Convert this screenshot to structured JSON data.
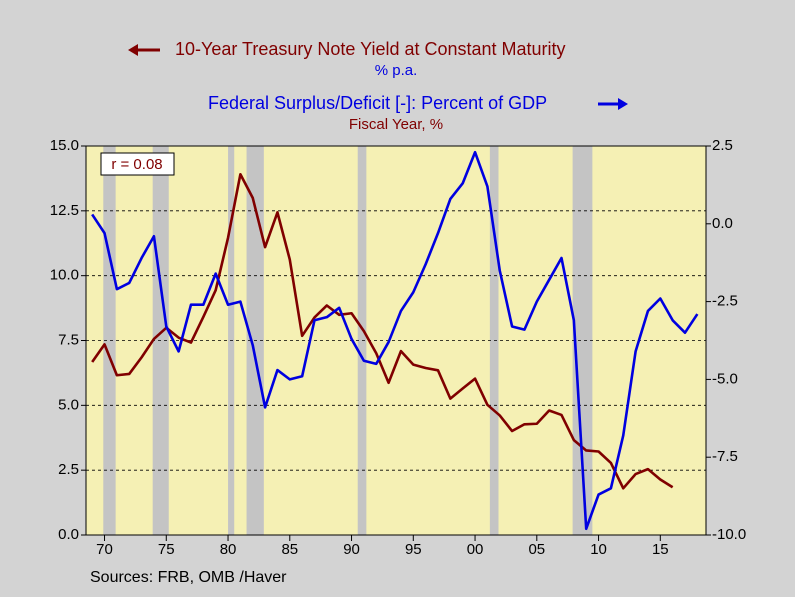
{
  "chart_data": {
    "type": "line",
    "title": "10-Year Treasury Note Yield at Constant Maturity",
    "subtitle": "% p.a.",
    "title2": "Federal Surplus/Deficit [-]: Percent of GDP",
    "subtitle2": "Fiscal Year, %",
    "annotation": "r = 0.08",
    "source": "Sources:  FRB, OMB /Haver",
    "xlim": [
      1968.5,
      2018.7
    ],
    "xticks": [
      {
        "value": 1970,
        "label": "70"
      },
      {
        "value": 1975,
        "label": "75"
      },
      {
        "value": 1980,
        "label": "80"
      },
      {
        "value": 1985,
        "label": "85"
      },
      {
        "value": 1990,
        "label": "90"
      },
      {
        "value": 1995,
        "label": "95"
      },
      {
        "value": 2000,
        "label": "00"
      },
      {
        "value": 2005,
        "label": "05"
      },
      {
        "value": 2010,
        "label": "10"
      },
      {
        "value": 2015,
        "label": "15"
      }
    ],
    "ylim": [
      0,
      15
    ],
    "yticks": [
      {
        "value": 0,
        "label": "0.0"
      },
      {
        "value": 2.5,
        "label": "2.5"
      },
      {
        "value": 5,
        "label": "5.0"
      },
      {
        "value": 7.5,
        "label": "7.5"
      },
      {
        "value": 10,
        "label": "10.0"
      },
      {
        "value": 12.5,
        "label": "12.5"
      },
      {
        "value": 15,
        "label": "15.0"
      }
    ],
    "y2lim": [
      -10,
      2.5
    ],
    "y2ticks": [
      {
        "value": -10,
        "label": "-10.0"
      },
      {
        "value": -7.5,
        "label": "-7.5"
      },
      {
        "value": -5,
        "label": "-5.0"
      },
      {
        "value": -2.5,
        "label": "-2.5"
      },
      {
        "value": 0,
        "label": "0.0"
      },
      2.5
    ],
    "grid": true,
    "recessions": [
      [
        1969.9,
        1970.9
      ],
      [
        1973.9,
        1975.2
      ],
      [
        1980.0,
        1980.5
      ],
      [
        1981.5,
        1982.9
      ],
      [
        1990.5,
        1991.2
      ],
      [
        2001.2,
        2001.9
      ],
      [
        2007.9,
        2009.5
      ]
    ],
    "series": [
      {
        "name": "10-Year Treasury Note Yield at Constant Maturity",
        "color": "#800000",
        "x": [
          1969,
          1970,
          1971,
          1972,
          1973,
          1974,
          1975,
          1976,
          1977,
          1978,
          1979,
          1980,
          1981,
          1982,
          1983,
          1984,
          1985,
          1986,
          1987,
          1988,
          1989,
          1990,
          1991,
          1992,
          1993,
          1994,
          1995,
          1996,
          1997,
          1998,
          1999,
          2000,
          2001,
          2002,
          2003,
          2004,
          2005,
          2006,
          2007,
          2008,
          2009,
          2010,
          2011,
          2012,
          2013,
          2014,
          2015,
          2016
        ],
        "values": [
          6.67,
          7.35,
          6.16,
          6.21,
          6.85,
          7.56,
          7.99,
          7.61,
          7.42,
          8.41,
          9.44,
          11.46,
          13.91,
          13.0,
          11.1,
          12.44,
          10.62,
          7.68,
          8.39,
          8.85,
          8.49,
          8.55,
          7.86,
          7.01,
          5.87,
          7.09,
          6.57,
          6.44,
          6.35,
          5.26,
          5.65,
          6.03,
          5.02,
          4.61,
          4.01,
          4.27,
          4.29,
          4.8,
          4.63,
          3.66,
          3.26,
          3.22,
          2.78,
          1.8,
          2.35,
          2.54,
          2.14,
          1.84
        ]
      },
      {
        "name": "Federal Surplus/Deficit [-]: Percent of GDP",
        "color": "#0000e0",
        "axis": "y2",
        "x": [
          1969,
          1970,
          1971,
          1972,
          1973,
          1974,
          1975,
          1976,
          1977,
          1978,
          1979,
          1980,
          1981,
          1982,
          1983,
          1984,
          1985,
          1986,
          1987,
          1988,
          1989,
          1990,
          1991,
          1992,
          1993,
          1994,
          1995,
          1996,
          1997,
          1998,
          1999,
          2000,
          2001,
          2002,
          2003,
          2004,
          2005,
          2006,
          2007,
          2008,
          2009,
          2010,
          2011,
          2012,
          2013,
          2014,
          2015,
          2016,
          2017,
          2018
        ],
        "values": [
          0.3,
          -0.3,
          -2.1,
          -1.9,
          -1.1,
          -0.4,
          -3.3,
          -4.1,
          -2.6,
          -2.6,
          -1.6,
          -2.6,
          -2.5,
          -3.9,
          -5.9,
          -4.7,
          -5.0,
          -4.9,
          -3.1,
          -3.0,
          -2.7,
          -3.7,
          -4.4,
          -4.5,
          -3.8,
          -2.8,
          -2.2,
          -1.3,
          -0.3,
          0.8,
          1.3,
          2.3,
          1.2,
          -1.5,
          -3.3,
          -3.4,
          -2.5,
          -1.8,
          -1.1,
          -3.1,
          -9.8,
          -8.7,
          -8.5,
          -6.8,
          -4.1,
          -2.8,
          -2.4,
          -3.1,
          -3.5,
          -2.9
        ]
      }
    ]
  }
}
